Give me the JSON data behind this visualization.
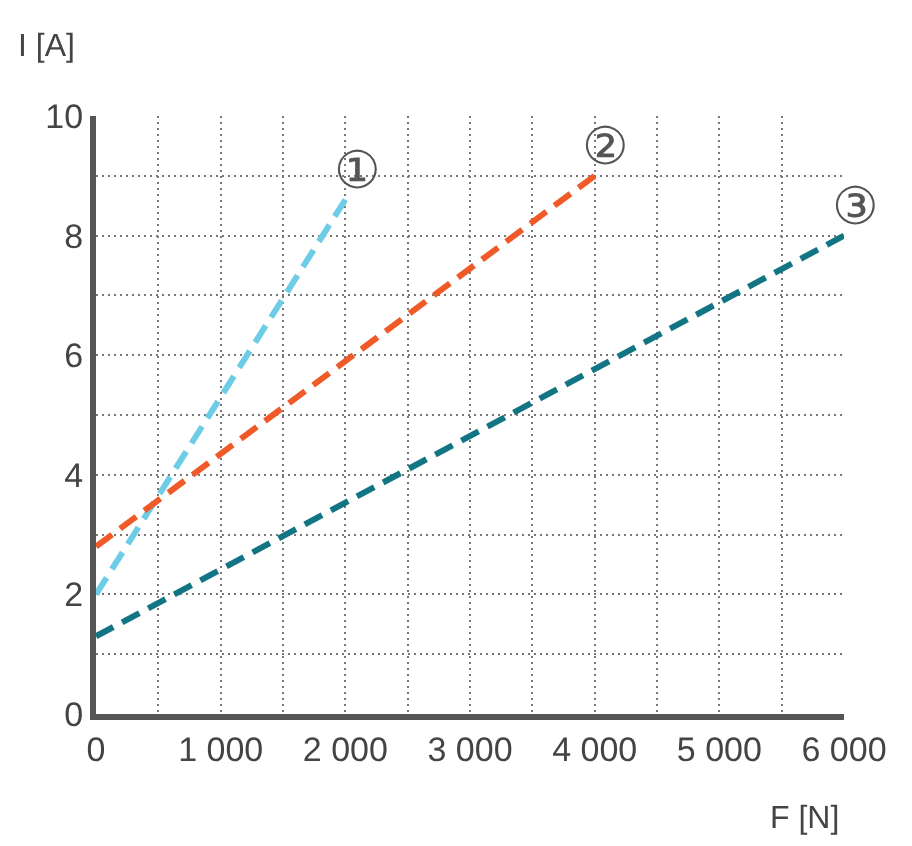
{
  "chart_data": {
    "type": "line",
    "xlabel": "F [N]",
    "ylabel": "I [A]",
    "xlim": [
      0,
      6000
    ],
    "ylim": [
      0,
      10
    ],
    "xticks": [
      0,
      {
        "value": 500,
        "label": null
      },
      {
        "value": 1000,
        "label": "1 000"
      },
      {
        "value": 1500,
        "label": null
      },
      {
        "value": 2000,
        "label": "2 000"
      },
      {
        "value": 2500,
        "label": null
      },
      {
        "value": 3000,
        "label": "3 000"
      },
      {
        "value": 3500,
        "label": null
      },
      {
        "value": 4000,
        "label": "4 000"
      },
      {
        "value": 4500,
        "label": null
      },
      {
        "value": 5000,
        "label": "5 000"
      },
      {
        "value": 5500,
        "label": null
      },
      {
        "value": 6000,
        "label": "6 000"
      }
    ],
    "yticks": [
      0,
      {
        "value": 1,
        "label": null
      },
      2,
      {
        "value": 3,
        "label": null
      },
      4,
      {
        "value": 5,
        "label": null
      },
      6,
      {
        "value": 7,
        "label": null
      },
      8,
      {
        "value": 9,
        "label": null
      },
      10
    ],
    "grid": true,
    "legend": false,
    "line_style": "dashed",
    "marker": "none",
    "series": [
      {
        "name": "①",
        "color": "#6dcde6",
        "x": [
          0,
          2000
        ],
        "values": [
          2,
          8.6
        ]
      },
      {
        "name": "②",
        "color": "#f05a28",
        "x": [
          0,
          4000
        ],
        "values": [
          2.8,
          9.0
        ]
      },
      {
        "name": "③",
        "color": "#127583",
        "x": [
          0,
          6000
        ],
        "values": [
          1.3,
          8.0
        ]
      }
    ]
  }
}
